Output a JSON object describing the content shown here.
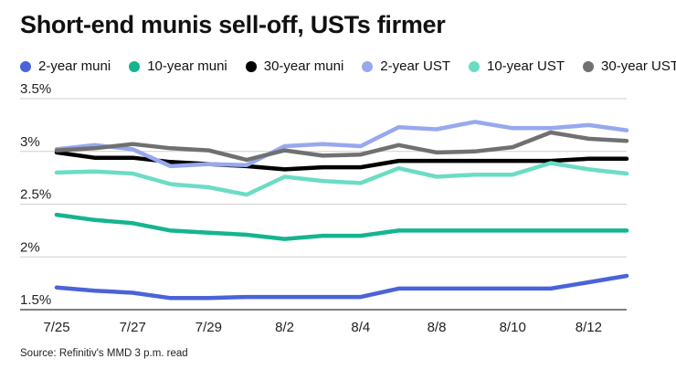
{
  "chart_data": {
    "type": "line",
    "title": "Short-end munis sell-off, USTs firmer",
    "source": "Source: Refinitiv's MMD 3 p.m. read",
    "x": [
      "7/25",
      "7/26",
      "7/27",
      "7/28",
      "7/29",
      "8/1",
      "8/2",
      "8/3",
      "8/4",
      "8/5",
      "8/8",
      "8/9",
      "8/10",
      "8/11",
      "8/12",
      "8/15"
    ],
    "x_ticks": [
      "7/25",
      "7/27",
      "7/29",
      "8/2",
      "8/4",
      "8/8",
      "8/10",
      "8/12"
    ],
    "x_tick_index": [
      0,
      2,
      4,
      6,
      8,
      10,
      12,
      14
    ],
    "y_ticks": [
      "3.5%",
      "3%",
      "2.5%",
      "2%",
      "1.5%"
    ],
    "y_tick_values": [
      3.5,
      3.0,
      2.5,
      2.0,
      1.5
    ],
    "ylim": [
      1.5,
      3.5
    ],
    "grid": true,
    "legend_position": "top",
    "series": [
      {
        "name": "2-year muni",
        "color": "#4a63d8",
        "values": [
          1.71,
          1.68,
          1.66,
          1.61,
          1.61,
          1.62,
          1.62,
          1.62,
          1.62,
          1.7,
          1.7,
          1.7,
          1.7,
          1.7,
          1.76,
          1.82
        ]
      },
      {
        "name": "10-year muni",
        "color": "#14b58e",
        "values": [
          2.4,
          2.35,
          2.32,
          2.25,
          2.23,
          2.21,
          2.17,
          2.2,
          2.2,
          2.25,
          2.25,
          2.25,
          2.25,
          2.25,
          2.25,
          2.25
        ]
      },
      {
        "name": "30-year muni",
        "color": "#000000",
        "values": [
          2.99,
          2.94,
          2.94,
          2.9,
          2.88,
          2.86,
          2.83,
          2.85,
          2.85,
          2.91,
          2.91,
          2.91,
          2.91,
          2.91,
          2.93,
          2.93
        ]
      },
      {
        "name": "2-year UST",
        "color": "#98a8ee",
        "values": [
          3.02,
          3.06,
          3.02,
          2.86,
          2.88,
          2.87,
          3.05,
          3.07,
          3.05,
          3.23,
          3.21,
          3.28,
          3.22,
          3.22,
          3.25,
          3.2
        ]
      },
      {
        "name": "10-year UST",
        "color": "#6cdcc4",
        "values": [
          2.8,
          2.81,
          2.79,
          2.69,
          2.66,
          2.59,
          2.76,
          2.72,
          2.7,
          2.84,
          2.76,
          2.78,
          2.78,
          2.89,
          2.83,
          2.79
        ]
      },
      {
        "name": "30-year UST",
        "color": "#707070",
        "values": [
          3.01,
          3.03,
          3.07,
          3.03,
          3.01,
          2.92,
          3.01,
          2.96,
          2.97,
          3.06,
          2.99,
          3.0,
          3.04,
          3.18,
          3.12,
          3.1
        ]
      }
    ]
  }
}
